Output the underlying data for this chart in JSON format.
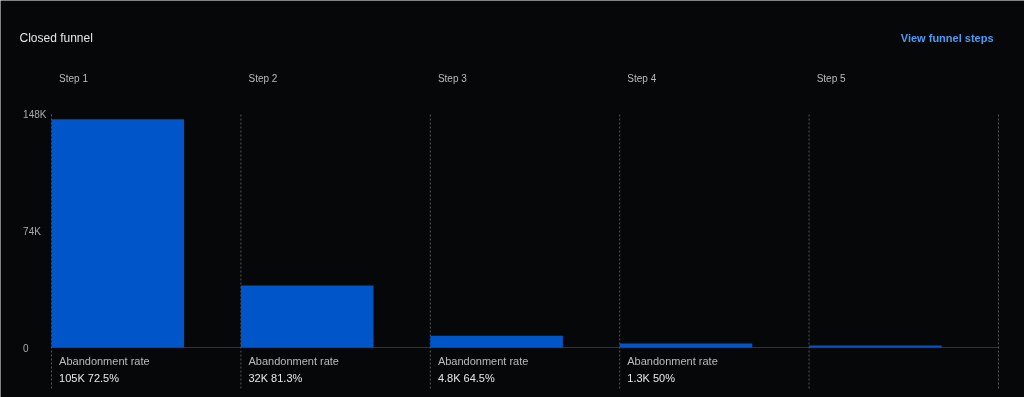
{
  "chart_data": {
    "type": "bar",
    "title": "Closed funnel",
    "categories": [
      "Step 1",
      "Step 2",
      "Step 3",
      "Step 4",
      "Step 5"
    ],
    "values": [
      145000,
      39400,
      7400,
      2600,
      1300
    ],
    "color": "#0055c8",
    "ylim": [
      0,
      148000
    ],
    "yticks": [
      0,
      {
        "value": 74000,
        "label": "74K"
      },
      {
        "value": 148000,
        "label": "148K"
      }
    ],
    "grid": "x",
    "annotations": [
      "View funnel steps",
      "Abandonment rate",
      "105K 72.5%",
      "Abandonment rate",
      "32K 81.3%",
      "Abandonment rate",
      "4.8K 64.5%",
      "Abandonment rate",
      "1.3K 50%"
    ]
  }
}
